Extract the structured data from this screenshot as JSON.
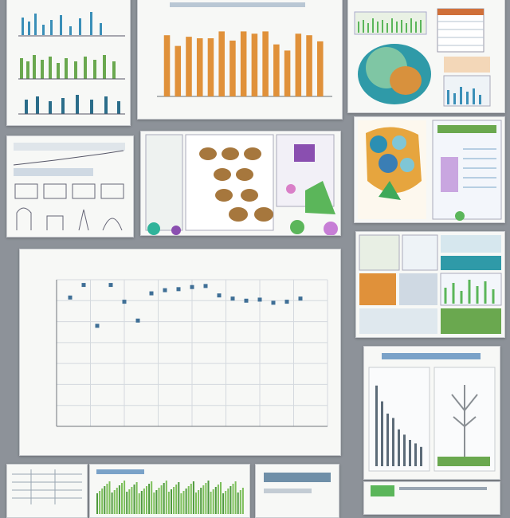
{
  "collage": {
    "background": "#8d9299",
    "panel_background": "#f7f8f6",
    "accent_colors": [
      "#e0913a",
      "#2b8fb3",
      "#5bb65a",
      "#8a4fb0",
      "#2b5d7a"
    ]
  },
  "main_chart": {
    "title": "",
    "xlabel": "",
    "ylabel": "",
    "chart_data": {
      "type": "scatter",
      "title": "",
      "xlabel": "",
      "ylabel": "",
      "x": [
        1,
        2,
        3,
        4,
        5,
        6,
        7,
        8,
        9,
        10,
        11,
        12,
        13,
        14,
        15,
        16,
        17,
        18
      ],
      "y": [
        123,
        135,
        96,
        135,
        119,
        101,
        127,
        130,
        131,
        133,
        134,
        125,
        122,
        120,
        121,
        118,
        119,
        122
      ],
      "xlim": [
        0,
        20
      ],
      "ylim": [
        0,
        140
      ],
      "grid": true,
      "color": "#3f6f96"
    }
  },
  "top_bar_chart": {
    "chart_data": {
      "type": "bar",
      "values": [
        80,
        66,
        78,
        76,
        76,
        85,
        73,
        85,
        82,
        85,
        68,
        60,
        82,
        80,
        72
      ],
      "ylim": [
        0,
        100
      ],
      "color": "#e0913a"
    }
  },
  "bottom_right_chart": {
    "chart_data": {
      "type": "bar",
      "values": [
        92,
        74,
        60,
        55,
        42,
        36,
        30,
        26,
        22
      ],
      "ylim": [
        0,
        100
      ],
      "color": "#5c6b78"
    }
  }
}
